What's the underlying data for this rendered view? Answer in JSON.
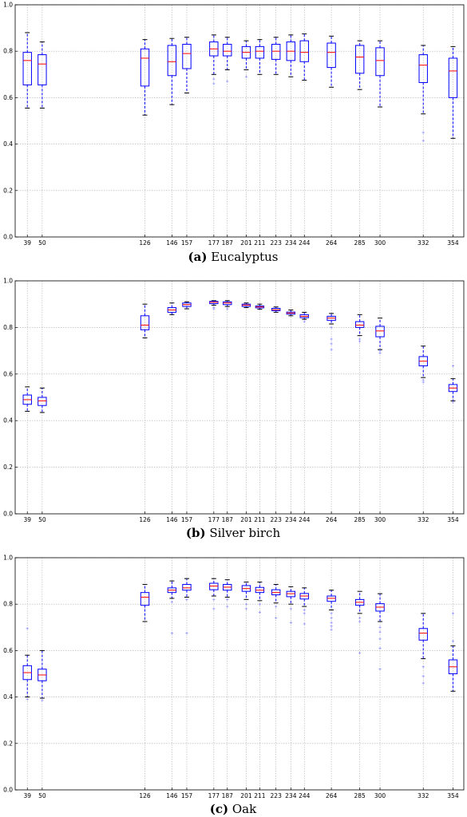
{
  "chart_data": [
    {
      "type": "box",
      "panel": "(a)",
      "caption": "Eucalyptus",
      "x_ticks": [
        39,
        50,
        126,
        146,
        157,
        177,
        187,
        201,
        211,
        223,
        234,
        244,
        264,
        285,
        300,
        332,
        354
      ],
      "ylim": [
        0.0,
        1.0
      ],
      "y_ticks": [
        "0.0",
        "0.2",
        "0.4",
        "0.6",
        "0.8",
        "1.0"
      ],
      "grid": true,
      "boxes": [
        {
          "x": 39,
          "wl": 0.555,
          "q1": 0.655,
          "med": 0.76,
          "q3": 0.795,
          "wh": 0.88,
          "outliers": []
        },
        {
          "x": 50,
          "wl": 0.555,
          "q1": 0.655,
          "med": 0.745,
          "q3": 0.785,
          "wh": 0.84,
          "outliers": []
        },
        {
          "x": 126,
          "wl": 0.525,
          "q1": 0.65,
          "med": 0.77,
          "q3": 0.81,
          "wh": 0.85,
          "outliers": []
        },
        {
          "x": 146,
          "wl": 0.57,
          "q1": 0.695,
          "med": 0.755,
          "q3": 0.825,
          "wh": 0.855,
          "outliers": []
        },
        {
          "x": 157,
          "wl": 0.62,
          "q1": 0.725,
          "med": 0.79,
          "q3": 0.83,
          "wh": 0.86,
          "outliers": []
        },
        {
          "x": 177,
          "wl": 0.7,
          "q1": 0.78,
          "med": 0.81,
          "q3": 0.84,
          "wh": 0.87,
          "outliers": [
            0.66,
            0.68
          ]
        },
        {
          "x": 187,
          "wl": 0.72,
          "q1": 0.78,
          "med": 0.8,
          "q3": 0.83,
          "wh": 0.86,
          "outliers": [
            0.67
          ]
        },
        {
          "x": 201,
          "wl": 0.72,
          "q1": 0.77,
          "med": 0.795,
          "q3": 0.82,
          "wh": 0.845,
          "outliers": [
            0.69
          ]
        },
        {
          "x": 211,
          "wl": 0.7,
          "q1": 0.77,
          "med": 0.8,
          "q3": 0.82,
          "wh": 0.85,
          "outliers": []
        },
        {
          "x": 223,
          "wl": 0.7,
          "q1": 0.765,
          "med": 0.8,
          "q3": 0.83,
          "wh": 0.86,
          "outliers": []
        },
        {
          "x": 234,
          "wl": 0.69,
          "q1": 0.76,
          "med": 0.8,
          "q3": 0.84,
          "wh": 0.87,
          "outliers": []
        },
        {
          "x": 244,
          "wl": 0.675,
          "q1": 0.755,
          "med": 0.795,
          "q3": 0.845,
          "wh": 0.875,
          "outliers": []
        },
        {
          "x": 264,
          "wl": 0.645,
          "q1": 0.73,
          "med": 0.795,
          "q3": 0.835,
          "wh": 0.865,
          "outliers": []
        },
        {
          "x": 285,
          "wl": 0.635,
          "q1": 0.705,
          "med": 0.775,
          "q3": 0.825,
          "wh": 0.845,
          "outliers": []
        },
        {
          "x": 300,
          "wl": 0.56,
          "q1": 0.695,
          "med": 0.76,
          "q3": 0.815,
          "wh": 0.845,
          "outliers": []
        },
        {
          "x": 332,
          "wl": 0.53,
          "q1": 0.665,
          "med": 0.74,
          "q3": 0.785,
          "wh": 0.825,
          "outliers": [
            0.45,
            0.415
          ]
        },
        {
          "x": 354,
          "wl": 0.425,
          "q1": 0.6,
          "med": 0.715,
          "q3": 0.77,
          "wh": 0.82,
          "outliers": []
        }
      ]
    },
    {
      "type": "box",
      "panel": "(b)",
      "caption": "Silver birch",
      "x_ticks": [
        39,
        50,
        126,
        146,
        157,
        177,
        187,
        201,
        211,
        223,
        234,
        244,
        264,
        285,
        300,
        332,
        354
      ],
      "ylim": [
        0.0,
        1.0
      ],
      "y_ticks": [
        "0.0",
        "0.2",
        "0.4",
        "0.6",
        "0.8",
        "1.0"
      ],
      "grid": true,
      "boxes": [
        {
          "x": 39,
          "wl": 0.44,
          "q1": 0.47,
          "med": 0.49,
          "q3": 0.51,
          "wh": 0.545,
          "outliers": []
        },
        {
          "x": 50,
          "wl": 0.435,
          "q1": 0.465,
          "med": 0.485,
          "q3": 0.5,
          "wh": 0.54,
          "outliers": []
        },
        {
          "x": 126,
          "wl": 0.755,
          "q1": 0.79,
          "med": 0.81,
          "q3": 0.85,
          "wh": 0.9,
          "outliers": []
        },
        {
          "x": 146,
          "wl": 0.855,
          "q1": 0.865,
          "med": 0.875,
          "q3": 0.885,
          "wh": 0.905,
          "outliers": []
        },
        {
          "x": 157,
          "wl": 0.88,
          "q1": 0.89,
          "med": 0.898,
          "q3": 0.905,
          "wh": 0.91,
          "outliers": []
        },
        {
          "x": 177,
          "wl": 0.895,
          "q1": 0.902,
          "med": 0.908,
          "q3": 0.912,
          "wh": 0.915,
          "outliers": [
            0.88,
            0.885
          ]
        },
        {
          "x": 187,
          "wl": 0.89,
          "q1": 0.898,
          "med": 0.905,
          "q3": 0.91,
          "wh": 0.915,
          "outliers": [
            0.88
          ]
        },
        {
          "x": 201,
          "wl": 0.885,
          "q1": 0.89,
          "med": 0.896,
          "q3": 0.9,
          "wh": 0.905,
          "outliers": []
        },
        {
          "x": 211,
          "wl": 0.878,
          "q1": 0.884,
          "med": 0.888,
          "q3": 0.892,
          "wh": 0.9,
          "outliers": []
        },
        {
          "x": 223,
          "wl": 0.865,
          "q1": 0.872,
          "med": 0.876,
          "q3": 0.882,
          "wh": 0.888,
          "outliers": []
        },
        {
          "x": 234,
          "wl": 0.85,
          "q1": 0.857,
          "med": 0.862,
          "q3": 0.866,
          "wh": 0.875,
          "outliers": []
        },
        {
          "x": 244,
          "wl": 0.835,
          "q1": 0.842,
          "med": 0.848,
          "q3": 0.855,
          "wh": 0.865,
          "outliers": [
            0.825
          ]
        },
        {
          "x": 264,
          "wl": 0.815,
          "q1": 0.83,
          "med": 0.84,
          "q3": 0.848,
          "wh": 0.86,
          "outliers": [
            0.75,
            0.73,
            0.705,
            0.8
          ]
        },
        {
          "x": 285,
          "wl": 0.765,
          "q1": 0.8,
          "med": 0.81,
          "q3": 0.825,
          "wh": 0.855,
          "outliers": [
            0.75,
            0.74
          ]
        },
        {
          "x": 300,
          "wl": 0.705,
          "q1": 0.76,
          "med": 0.785,
          "q3": 0.805,
          "wh": 0.84,
          "outliers": [
            0.69,
            0.7
          ]
        },
        {
          "x": 332,
          "wl": 0.585,
          "q1": 0.635,
          "med": 0.655,
          "q3": 0.675,
          "wh": 0.72,
          "outliers": [
            0.565,
            0.575
          ]
        },
        {
          "x": 354,
          "wl": 0.485,
          "q1": 0.525,
          "med": 0.54,
          "q3": 0.555,
          "wh": 0.58,
          "outliers": [
            0.635,
            0.48
          ]
        }
      ]
    },
    {
      "type": "box",
      "panel": "(c)",
      "caption": "Oak",
      "x_ticks": [
        39,
        50,
        126,
        146,
        157,
        177,
        187,
        201,
        211,
        223,
        234,
        244,
        264,
        285,
        300,
        332,
        354
      ],
      "ylim": [
        0.0,
        1.0
      ],
      "y_ticks": [
        "0.0",
        "0.2",
        "0.4",
        "0.6",
        "0.8",
        "1.0"
      ],
      "grid": true,
      "boxes": [
        {
          "x": 39,
          "wl": 0.4,
          "q1": 0.475,
          "med": 0.505,
          "q3": 0.535,
          "wh": 0.58,
          "outliers": [
            0.695,
            0.39
          ]
        },
        {
          "x": 50,
          "wl": 0.395,
          "q1": 0.47,
          "med": 0.495,
          "q3": 0.52,
          "wh": 0.6,
          "outliers": [
            0.385
          ]
        },
        {
          "x": 126,
          "wl": 0.725,
          "q1": 0.795,
          "med": 0.83,
          "q3": 0.85,
          "wh": 0.885,
          "outliers": []
        },
        {
          "x": 146,
          "wl": 0.825,
          "q1": 0.85,
          "med": 0.86,
          "q3": 0.87,
          "wh": 0.9,
          "outliers": [
            0.675,
            0.81
          ]
        },
        {
          "x": 157,
          "wl": 0.83,
          "q1": 0.86,
          "med": 0.87,
          "q3": 0.885,
          "wh": 0.91,
          "outliers": [
            0.675,
            0.82
          ]
        },
        {
          "x": 177,
          "wl": 0.835,
          "q1": 0.862,
          "med": 0.878,
          "q3": 0.89,
          "wh": 0.91,
          "outliers": [
            0.78,
            0.82
          ]
        },
        {
          "x": 187,
          "wl": 0.83,
          "q1": 0.86,
          "med": 0.873,
          "q3": 0.885,
          "wh": 0.905,
          "outliers": [
            0.79,
            0.82
          ]
        },
        {
          "x": 201,
          "wl": 0.82,
          "q1": 0.855,
          "med": 0.867,
          "q3": 0.88,
          "wh": 0.895,
          "outliers": [
            0.78,
            0.8
          ]
        },
        {
          "x": 211,
          "wl": 0.815,
          "q1": 0.85,
          "med": 0.86,
          "q3": 0.872,
          "wh": 0.895,
          "outliers": [
            0.765,
            0.8
          ]
        },
        {
          "x": 223,
          "wl": 0.805,
          "q1": 0.84,
          "med": 0.85,
          "q3": 0.862,
          "wh": 0.885,
          "outliers": [
            0.74,
            0.79
          ]
        },
        {
          "x": 234,
          "wl": 0.8,
          "q1": 0.832,
          "med": 0.845,
          "q3": 0.855,
          "wh": 0.875,
          "outliers": [
            0.72,
            0.78
          ]
        },
        {
          "x": 244,
          "wl": 0.79,
          "q1": 0.822,
          "med": 0.835,
          "q3": 0.846,
          "wh": 0.87,
          "outliers": [
            0.715,
            0.76,
            0.775
          ]
        },
        {
          "x": 264,
          "wl": 0.775,
          "q1": 0.812,
          "med": 0.825,
          "q3": 0.835,
          "wh": 0.86,
          "outliers": [
            0.76,
            0.74,
            0.72,
            0.705,
            0.69
          ]
        },
        {
          "x": 285,
          "wl": 0.76,
          "q1": 0.795,
          "med": 0.808,
          "q3": 0.82,
          "wh": 0.855,
          "outliers": [
            0.74,
            0.725,
            0.59
          ]
        },
        {
          "x": 300,
          "wl": 0.725,
          "q1": 0.77,
          "med": 0.787,
          "q3": 0.802,
          "wh": 0.845,
          "outliers": [
            0.7,
            0.68,
            0.65,
            0.61,
            0.52
          ]
        },
        {
          "x": 332,
          "wl": 0.565,
          "q1": 0.645,
          "med": 0.675,
          "q3": 0.695,
          "wh": 0.76,
          "outliers": [
            0.53,
            0.49,
            0.46
          ]
        },
        {
          "x": 354,
          "wl": 0.425,
          "q1": 0.5,
          "med": 0.53,
          "q3": 0.56,
          "wh": 0.62,
          "outliers": [
            0.76,
            0.64
          ]
        }
      ]
    }
  ]
}
